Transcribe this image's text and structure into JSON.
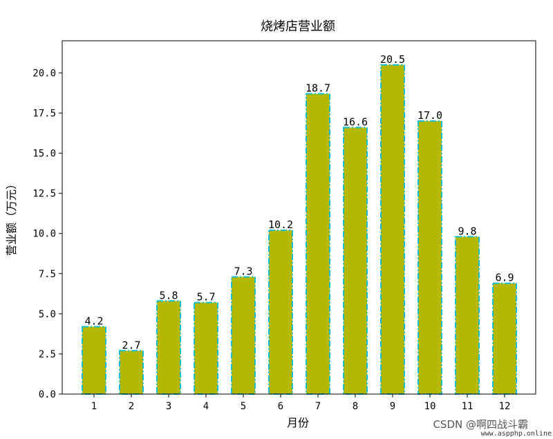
{
  "chart_data": {
    "type": "bar",
    "title": "烧烤店营业额",
    "xlabel": "月份",
    "ylabel": "营业额（万元）",
    "categories": [
      "1",
      "2",
      "3",
      "4",
      "5",
      "6",
      "7",
      "8",
      "9",
      "10",
      "11",
      "12"
    ],
    "values": [
      4.2,
      2.7,
      5.8,
      5.7,
      7.3,
      10.2,
      18.7,
      16.6,
      20.5,
      17.0,
      9.8,
      6.9
    ],
    "value_labels": [
      "4.2",
      "2.7",
      "5.8",
      "5.7",
      "7.3",
      "10.2",
      "18.7",
      "16.6",
      "20.5",
      "17.0",
      "9.8",
      "6.9"
    ],
    "ylim": [
      0,
      22
    ],
    "yticks": [
      "0.0",
      "2.5",
      "5.0",
      "7.5",
      "10.0",
      "12.5",
      "15.0",
      "17.5",
      "20.0"
    ],
    "bar_color": "#b5b800",
    "edge_color": "#17becf",
    "edge_style": "dash-dot",
    "grid": false,
    "legend": "none"
  },
  "watermark": {
    "csdn": "CSDN @啊四战斗霸",
    "site": "www.aspphp.online"
  }
}
